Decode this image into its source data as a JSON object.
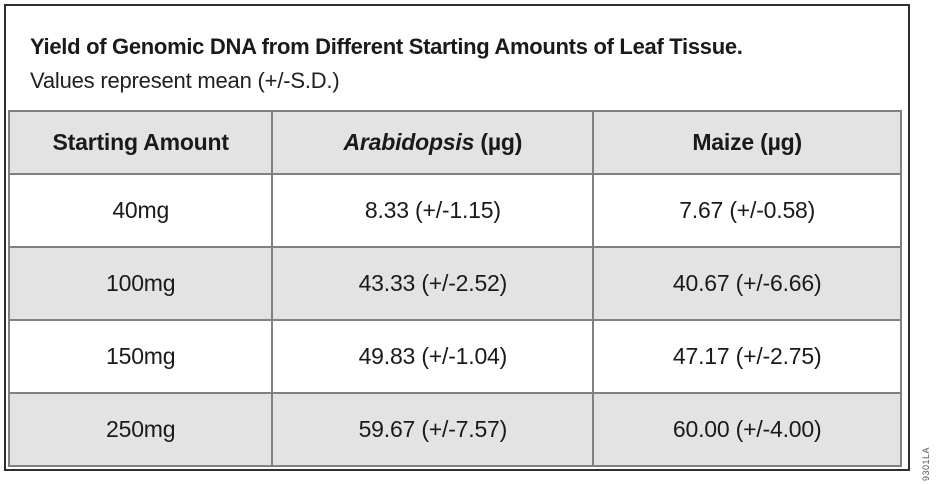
{
  "chart_data": {
    "type": "table",
    "title": "Yield of Genomic DNA from Different Starting Amounts of Leaf Tissue.",
    "subtitle": "Values represent mean (+/-S.D.)",
    "columns": {
      "c1": "Starting Amount",
      "c2_italic": "Arabidopsis",
      "c2_unit": " (µg)",
      "c3": "Maize (µg)"
    },
    "rows": [
      {
        "starting_amount": "40mg",
        "arabidopsis": "8.33 (+/-1.15)",
        "maize": "7.67 (+/-0.58)"
      },
      {
        "starting_amount": "100mg",
        "arabidopsis": "43.33 (+/-2.52)",
        "maize": "40.67 (+/-6.66)"
      },
      {
        "starting_amount": "150mg",
        "arabidopsis": "49.83 (+/-1.04)",
        "maize": "47.17 (+/-2.75)"
      },
      {
        "starting_amount": "250mg",
        "arabidopsis": "59.67 (+/-7.57)",
        "maize": "60.00 (+/-4.00)"
      }
    ],
    "numeric": {
      "starting_amount_mg": [
        40,
        100,
        150,
        250
      ],
      "arabidopsis_mean_ug": [
        8.33,
        43.33,
        49.83,
        59.67
      ],
      "arabidopsis_sd_ug": [
        1.15,
        2.52,
        1.04,
        7.57
      ],
      "maize_mean_ug": [
        7.67,
        40.67,
        47.17,
        60.0
      ],
      "maize_sd_ug": [
        0.58,
        6.66,
        2.75,
        4.0
      ]
    }
  },
  "figure_code": "9301LA",
  "colors": {
    "shaded_row_bg": "#e3e3e3",
    "cell_border": "#808080",
    "frame_border": "#2e2e2e",
    "text": "#1a1a1a"
  }
}
